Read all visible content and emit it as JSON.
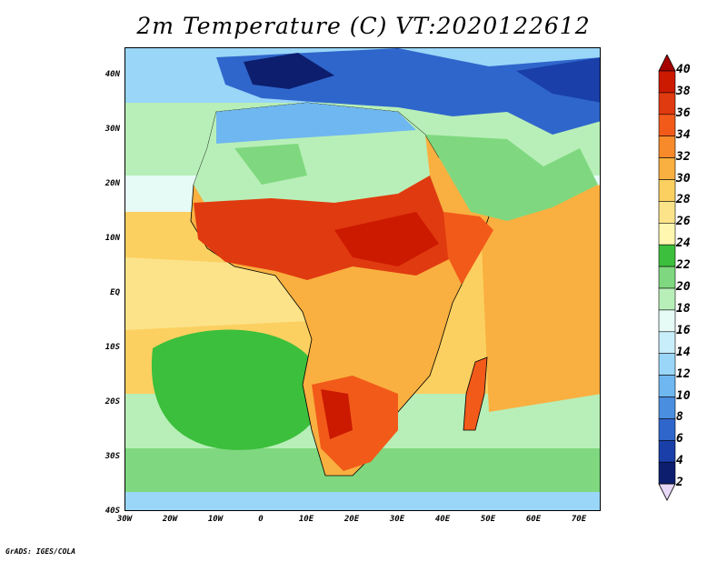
{
  "title": "2m Temperature (C) VT:2020122612",
  "credit": "GrADS: IGES/COLA",
  "map": {
    "region": "Africa",
    "lat_range": [
      -40,
      45
    ],
    "lon_range": [
      -30,
      75
    ],
    "lat_labels": [
      "40N",
      "30N",
      "20N",
      "10N",
      "EQ",
      "10S",
      "20S",
      "30S",
      "40S"
    ],
    "lat_values": [
      40,
      30,
      20,
      10,
      0,
      -10,
      -20,
      -30,
      -40
    ],
    "lon_labels": [
      "30W",
      "20W",
      "10W",
      "0",
      "10E",
      "20E",
      "30E",
      "40E",
      "50E",
      "60E",
      "70E"
    ],
    "lon_values": [
      -30,
      -20,
      -10,
      0,
      10,
      20,
      30,
      40,
      50,
      60,
      70
    ]
  },
  "colorbar": {
    "levels": [
      "40",
      "38",
      "36",
      "34",
      "32",
      "30",
      "28",
      "26",
      "24",
      "22",
      "20",
      "18",
      "16",
      "14",
      "12",
      "10",
      "8",
      "6",
      "4",
      "2"
    ],
    "colors": [
      "#a50000",
      "#cc1a00",
      "#e03a10",
      "#f25a1a",
      "#f78a2a",
      "#f9b040",
      "#fbd060",
      "#fce38a",
      "#fff7b0",
      "#3cbf3c",
      "#7fd87f",
      "#b8efb8",
      "#e6fbf6",
      "#c8eefc",
      "#9ad6f8",
      "#6fb7f0",
      "#4a8ee0",
      "#2f66cc",
      "#1a3fa8",
      "#0d1e6e",
      "#e8d8f8"
    ]
  },
  "colors": {
    "ocean_tropics": "#fbd060",
    "ocean_south": "#7fd87f",
    "land_hot": "#e03a10",
    "land_warm": "#f9b040",
    "sahara_cool": "#b8efb8",
    "north_cold": "#6fb7f0",
    "mediterranean": "#3cbf3c"
  }
}
